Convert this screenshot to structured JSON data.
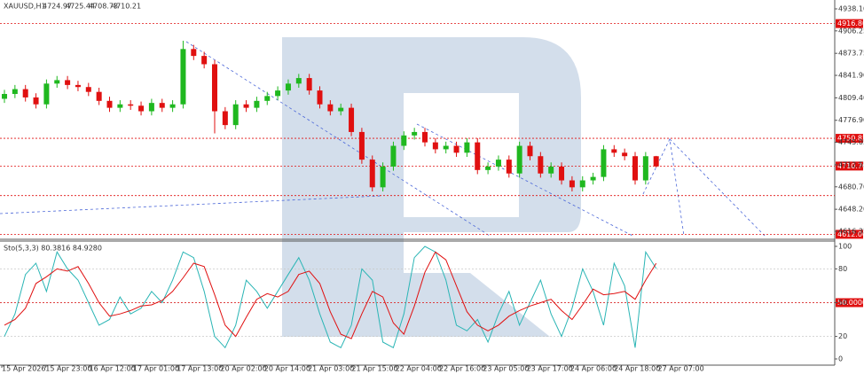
{
  "chart_data": [
    {
      "type": "candlestick",
      "symbol": "XAUUSD,H1",
      "open": [
        4808,
        4815,
        4822,
        4810,
        4800,
        4830,
        4835,
        4828,
        4825,
        4818,
        4805,
        4795,
        4800,
        4798,
        4790,
        4802,
        4795,
        4800,
        4880,
        4870,
        4858,
        4790,
        4770,
        4800,
        4795,
        4805,
        4812,
        4820,
        4830,
        4838,
        4820,
        4800,
        4790,
        4795,
        4760,
        4720,
        4680,
        4710,
        4740,
        4755,
        4760,
        4745,
        4735,
        4740,
        4730,
        4745,
        4705,
        4710,
        4720,
        4700,
        4740,
        4725,
        4700,
        4710,
        4690,
        4680,
        4690,
        4695,
        4735,
        4730,
        4725,
        4690,
        4724.97
      ],
      "high": [
        4821,
        4828,
        4828,
        4816,
        4836,
        4841,
        4841,
        4834,
        4831,
        4824,
        4811,
        4806,
        4806,
        4804,
        4808,
        4808,
        4806,
        4892,
        4886,
        4876,
        4864,
        4796,
        4806,
        4806,
        4811,
        4818,
        4826,
        4836,
        4844,
        4844,
        4826,
        4806,
        4801,
        4801,
        4766,
        4726,
        4716,
        4746,
        4761,
        4766,
        4766,
        4751,
        4746,
        4746,
        4751,
        4751,
        4716,
        4726,
        4726,
        4746,
        4746,
        4731,
        4716,
        4716,
        4696,
        4696,
        4701,
        4741,
        4741,
        4736,
        4731,
        4731,
        4725.44
      ],
      "low": [
        4802,
        4809,
        4804,
        4794,
        4794,
        4824,
        4822,
        4819,
        4812,
        4799,
        4789,
        4789,
        4792,
        4784,
        4784,
        4789,
        4789,
        4794,
        4864,
        4852,
        4758,
        4764,
        4764,
        4789,
        4789,
        4799,
        4806,
        4814,
        4824,
        4814,
        4794,
        4784,
        4784,
        4754,
        4714,
        4674,
        4674,
        4704,
        4734,
        4749,
        4739,
        4729,
        4729,
        4724,
        4724,
        4699,
        4699,
        4704,
        4694,
        4694,
        4719,
        4694,
        4694,
        4684,
        4674,
        4674,
        4684,
        4689,
        4724,
        4719,
        4684,
        4684,
        4708.73
      ],
      "close": [
        4815,
        4822,
        4810,
        4800,
        4830,
        4835,
        4828,
        4825,
        4818,
        4805,
        4795,
        4800,
        4798,
        4790,
        4802,
        4795,
        4800,
        4880,
        4870,
        4858,
        4790,
        4770,
        4800,
        4795,
        4805,
        4812,
        4820,
        4830,
        4838,
        4820,
        4800,
        4790,
        4795,
        4760,
        4720,
        4680,
        4710,
        4740,
        4755,
        4760,
        4745,
        4735,
        4740,
        4730,
        4745,
        4705,
        4710,
        4720,
        4700,
        4740,
        4725,
        4700,
        4710,
        4690,
        4680,
        4690,
        4695,
        4735,
        4730,
        4725,
        4690,
        4724.97,
        4710.21
      ],
      "up_color": "#1fb81f",
      "down_color": "#e01010",
      "ylim": [
        4604.8,
        4950.9
      ],
      "yticks": [
        {
          "value": 4938.1,
          "label": "4938.10"
        },
        {
          "value": 4906.25,
          "label": "4906.25"
        },
        {
          "value": 4873.75,
          "label": "4873.75"
        },
        {
          "value": 4841.9,
          "label": "4841.90"
        },
        {
          "value": 4809.4,
          "label": "4809.40"
        },
        {
          "value": 4776.9,
          "label": "4776.90"
        },
        {
          "value": 4745.05,
          "label": "4745.05"
        },
        {
          "value": 4712.55,
          "label": "4712.55"
        },
        {
          "value": 4680.7,
          "label": "4680.70"
        },
        {
          "value": 4648.2,
          "label": "4648.20"
        },
        {
          "value": 4616.35,
          "label": "4616.35"
        }
      ],
      "levels": [
        {
          "value": 4916.8,
          "label": "4916.80"
        },
        {
          "value": 4750.85,
          "label": "4750.85"
        },
        {
          "value": 4710.7,
          "label": "4710.70"
        },
        {
          "value": 4668,
          "label": null
        },
        {
          "value": 4612.0,
          "label": "4612.00"
        }
      ],
      "level_color": "#e01010",
      "x_labels": [
        "15 Apr 2026",
        "15 Apr 23:00",
        "16 Apr 12:00",
        "17 Apr 01:00",
        "17 Apr 13:00",
        "20 Apr 02:00",
        "20 Apr 14:00",
        "21 Apr 03:00",
        "21 Apr 15:00",
        "22 Apr 04:00",
        "22 Apr 16:00",
        "23 Apr 05:00",
        "23 Apr 17:00",
        "24 Apr 06:00",
        "24 Apr 18:00",
        "27 Apr 07:00"
      ]
    },
    {
      "type": "line",
      "legend_text": "Sto(5,3,3) 80.3816 84.9280",
      "series": [
        {
          "name": "K",
          "color": "#2ab5b5",
          "values": [
            20,
            40,
            75,
            85,
            60,
            95,
            80,
            70,
            50,
            30,
            35,
            55,
            40,
            45,
            60,
            50,
            70,
            95,
            90,
            60,
            20,
            10,
            30,
            70,
            60,
            45,
            60,
            75,
            90,
            70,
            40,
            15,
            10,
            30,
            80,
            70,
            15,
            10,
            40,
            90,
            100,
            95,
            70,
            30,
            25,
            35,
            15,
            40,
            60,
            30,
            50,
            70,
            40,
            20,
            45,
            80,
            60,
            30,
            85,
            65,
            10,
            95,
            80.3816
          ]
        },
        {
          "name": "D",
          "color": "#e01010",
          "values": [
            30,
            35,
            45,
            67,
            73,
            80,
            78,
            82,
            67,
            50,
            38,
            40,
            43,
            47,
            48,
            52,
            60,
            72,
            85,
            82,
            57,
            30,
            20,
            37,
            53,
            58,
            55,
            60,
            75,
            78,
            67,
            42,
            22,
            18,
            40,
            60,
            55,
            32,
            22,
            47,
            77,
            95,
            88,
            65,
            42,
            30,
            25,
            30,
            38,
            43,
            47,
            50,
            53,
            43,
            35,
            48,
            62,
            57,
            58,
            60,
            53,
            70,
            84.928
          ]
        }
      ],
      "ylim": [
        -5.5,
        104.7
      ],
      "yticks": [
        100,
        80,
        50,
        20,
        0
      ],
      "levels": [
        {
          "value": 50,
          "label": "50.0000"
        }
      ],
      "level_color": "#e01010"
    }
  ]
}
